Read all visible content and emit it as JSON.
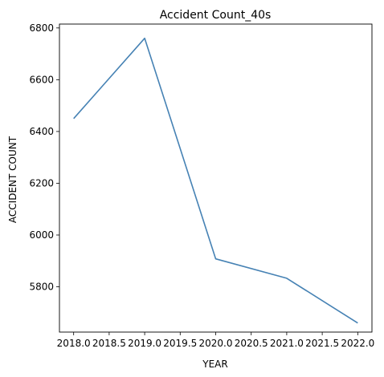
{
  "chart_data": {
    "type": "line",
    "title": "Accident Count_40s",
    "xlabel": "YEAR",
    "ylabel": "ACCIDENT COUNT",
    "x": [
      2018,
      2019,
      2020,
      2021,
      2022
    ],
    "series": [
      {
        "values": [
          6450,
          6760,
          5908,
          5833,
          5660
        ],
        "color": "#4682b4"
      }
    ],
    "xlim": [
      2017.8,
      2022.2
    ],
    "ylim": [
      5625,
      6815
    ],
    "xticks": [
      2018.0,
      2018.5,
      2019.0,
      2019.5,
      2020.0,
      2020.5,
      2021.0,
      2021.5,
      2022.0
    ],
    "xtick_labels": [
      "2018.0",
      "2018.5",
      "2019.0",
      "2019.5",
      "2020.0",
      "2020.5",
      "2021.0",
      "2021.5",
      "2022.0"
    ],
    "yticks": [
      5800,
      6000,
      6200,
      6400,
      6600,
      6800
    ],
    "ytick_labels": [
      "5800",
      "6000",
      "6200",
      "6400",
      "6600",
      "6800"
    ],
    "grid": false,
    "legend": false
  }
}
